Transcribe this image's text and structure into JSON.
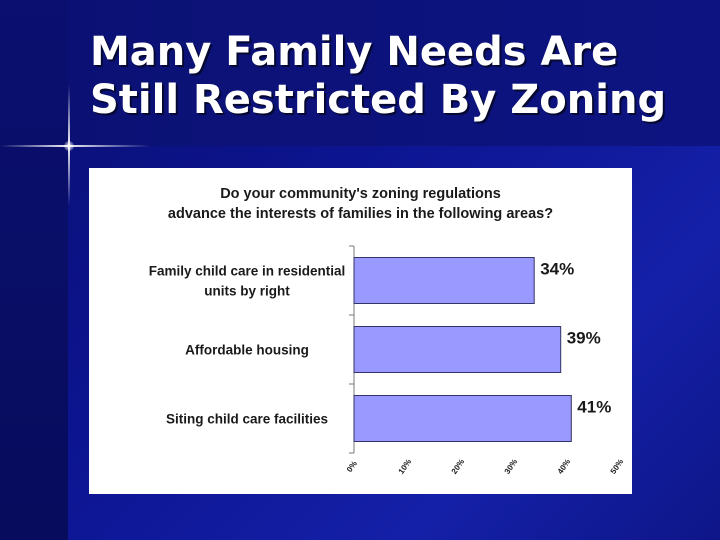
{
  "slide": {
    "title_line1": "Many Family Needs Are",
    "title_line2": "Still Restricted By Zoning"
  },
  "colors": {
    "bar_fill": "#9999ff",
    "bar_stroke": "#333366",
    "background": "#0c1490",
    "panel": "#ffffff"
  },
  "chart_data": {
    "type": "bar",
    "orientation": "horizontal",
    "title_line1": "Do your community's zoning regulations",
    "title_line2": "advance the interests of families in the following areas?",
    "categories": [
      [
        "Family child care in residential",
        "units by right"
      ],
      [
        "Affordable housing"
      ],
      [
        "Siting child care facilities"
      ]
    ],
    "values": [
      34,
      39,
      41
    ],
    "value_labels": [
      "34%",
      "39%",
      "41%"
    ],
    "x_ticks": [
      0,
      10,
      20,
      30,
      40,
      50
    ],
    "x_tick_labels": [
      "0%",
      "10%",
      "20%",
      "30%",
      "40%",
      "50%"
    ],
    "xlim": [
      0,
      50
    ],
    "grid": false,
    "legend": "none"
  }
}
